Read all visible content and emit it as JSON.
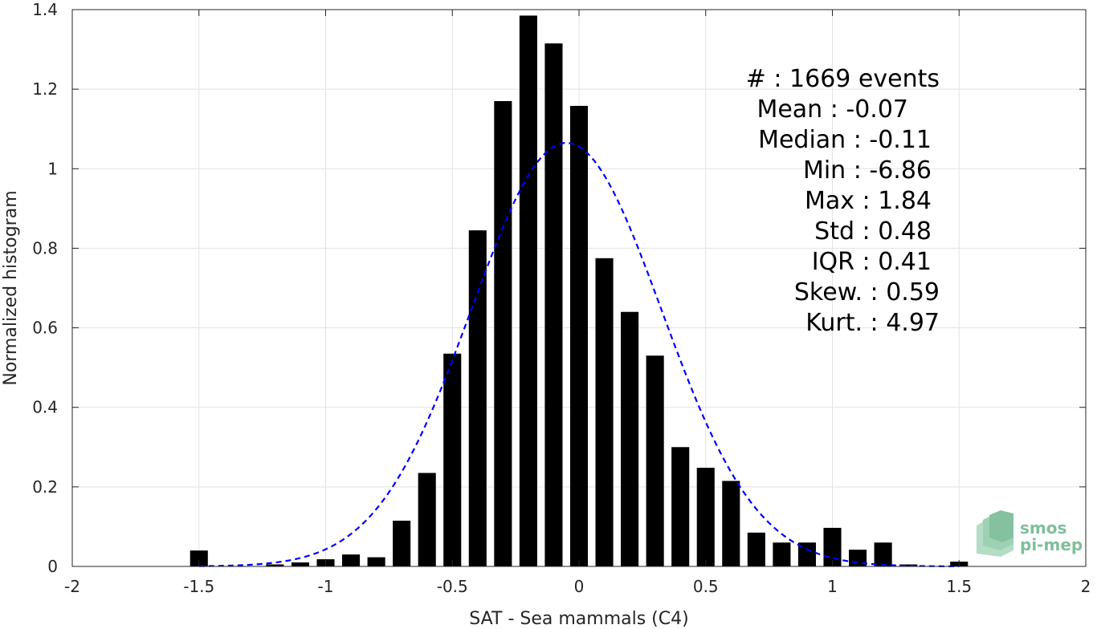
{
  "chart_data": {
    "type": "bar",
    "xlabel": "SAT - Sea mammals (C4)",
    "ylabel": "Normalized histogram",
    "xlim": [
      -2,
      2
    ],
    "ylim": [
      0,
      1.4
    ],
    "xticks": [
      -2,
      -1.5,
      -1,
      -0.5,
      0,
      0.5,
      1,
      1.5,
      2
    ],
    "xtick_labels": [
      "-2",
      "-1.5",
      "-1",
      "-0.5",
      "0",
      "0.5",
      "1",
      "1.5",
      "2"
    ],
    "yticks": [
      0,
      0.2,
      0.4,
      0.6,
      0.8,
      1,
      1.2,
      1.4
    ],
    "ytick_labels": [
      "0",
      "0.2",
      "0.4",
      "0.6",
      "0.8",
      "1",
      "1.2",
      "1.4"
    ],
    "grid": true,
    "bar_color": "#000000",
    "bar_width": 0.07,
    "bins": [
      -1.5,
      -1.4,
      -1.3,
      -1.2,
      -1.1,
      -1.0,
      -0.9,
      -0.8,
      -0.7,
      -0.6,
      -0.5,
      -0.4,
      -0.3,
      -0.2,
      -0.1,
      0.0,
      0.1,
      0.2,
      0.3,
      0.4,
      0.5,
      0.6,
      0.7,
      0.8,
      0.9,
      1.0,
      1.1,
      1.2,
      1.3,
      1.4,
      1.5
    ],
    "values": [
      0.04,
      0,
      0,
      0.005,
      0.01,
      0.018,
      0.03,
      0.023,
      0.115,
      0.235,
      0.535,
      0.845,
      1.17,
      1.385,
      1.315,
      1.158,
      0.775,
      0.64,
      0.53,
      0.3,
      0.248,
      0.215,
      0.085,
      0.06,
      0.06,
      0.097,
      0.042,
      0.06,
      0.005,
      0,
      0.012
    ],
    "fit_curve": {
      "type": "normal",
      "mean": -0.05,
      "std": 0.375,
      "peak": 1.065,
      "color": "#0000ff",
      "style": "dashed",
      "x_range": [
        -1.5,
        1.5
      ]
    },
    "annotation": {
      "lines": [
        "#  : 1669 events",
        "Mean : -0.07",
        "Median : -0.11",
        "Min : -6.86",
        "Max : 1.84",
        "Std : 0.48",
        "IQR : 0.41",
        "Skew. : 0.59",
        "Kurt. : 4.97"
      ],
      "placement": "top-right"
    }
  },
  "logo": {
    "line1": "smos",
    "line2": "pi-mep",
    "color": "#7fbf9a"
  }
}
